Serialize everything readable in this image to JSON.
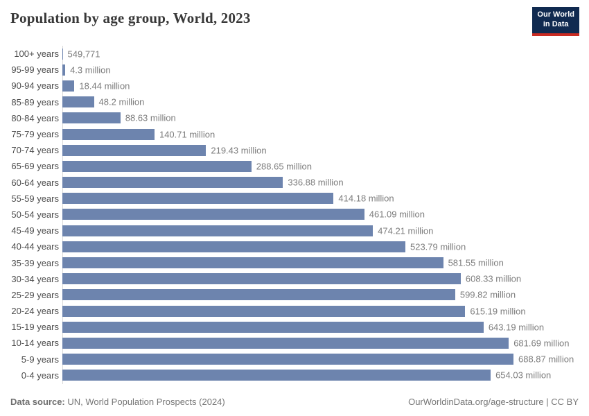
{
  "header": {
    "title": "Population by age group, World, 2023"
  },
  "logo": {
    "line1": "Our World",
    "line2": "in Data",
    "background": "#102a50",
    "accent": "#ca2b22"
  },
  "chart_data": {
    "type": "bar",
    "orientation": "horizontal",
    "title": "Population by age group, World, 2023",
    "xlabel": "",
    "ylabel": "Age group",
    "unit": "people",
    "xlim_millions": [
      0,
      688.87
    ],
    "grid": false,
    "legend": false,
    "bar_color": "#6d84ae",
    "categories": [
      "100+ years",
      "95-99 years",
      "90-94 years",
      "85-89 years",
      "80-84 years",
      "75-79 years",
      "70-74 years",
      "65-69 years",
      "60-64 years",
      "55-59 years",
      "50-54 years",
      "45-49 years",
      "40-44 years",
      "35-39 years",
      "30-34 years",
      "25-29 years",
      "20-24 years",
      "15-19 years",
      "10-14 years",
      "5-9 years",
      "0-4 years"
    ],
    "values_millions": [
      0.549771,
      4.3,
      18.44,
      48.2,
      88.63,
      140.71,
      219.43,
      288.65,
      336.88,
      414.18,
      461.09,
      474.21,
      523.79,
      581.55,
      608.33,
      599.82,
      615.19,
      643.19,
      681.69,
      688.87,
      654.03
    ],
    "value_labels": [
      "549,771",
      "4.3 million",
      "18.44 million",
      "48.2 million",
      "88.63 million",
      "140.71 million",
      "219.43 million",
      "288.65 million",
      "336.88 million",
      "414.18 million",
      "461.09 million",
      "474.21 million",
      "523.79 million",
      "581.55 million",
      "608.33 million",
      "599.82 million",
      "615.19 million",
      "643.19 million",
      "681.69 million",
      "688.87 million",
      "654.03 million"
    ]
  },
  "footer": {
    "datasource_label": "Data source:",
    "datasource_text": " UN, World Population Prospects (2024)",
    "credit": "OurWorldinData.org/age-structure | CC BY"
  }
}
